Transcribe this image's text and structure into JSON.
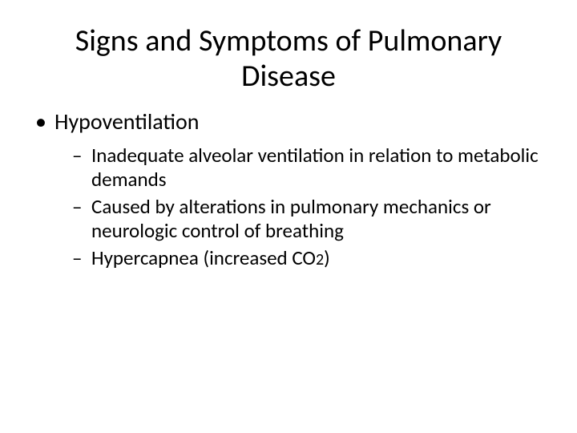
{
  "slide": {
    "title": "Signs and Symptoms of Pulmonary Disease",
    "bullets": [
      {
        "level": 1,
        "text": "Hypoventilation"
      },
      {
        "level": 2,
        "text": "Inadequate alveolar ventilation in relation to metabolic demands"
      },
      {
        "level": 2,
        "text": "Caused by alterations in pulmonary mechanics or neurologic control of breathing"
      },
      {
        "level": 2,
        "text_prefix": "Hypercapnea (increased CO",
        "text_sub": "2",
        "text_suffix": ")"
      }
    ],
    "style": {
      "background_color": "#ffffff",
      "text_color": "#000000",
      "title_fontsize": 38,
      "l1_fontsize": 28,
      "l2_fontsize": 25,
      "font_family": "Calibri"
    }
  }
}
